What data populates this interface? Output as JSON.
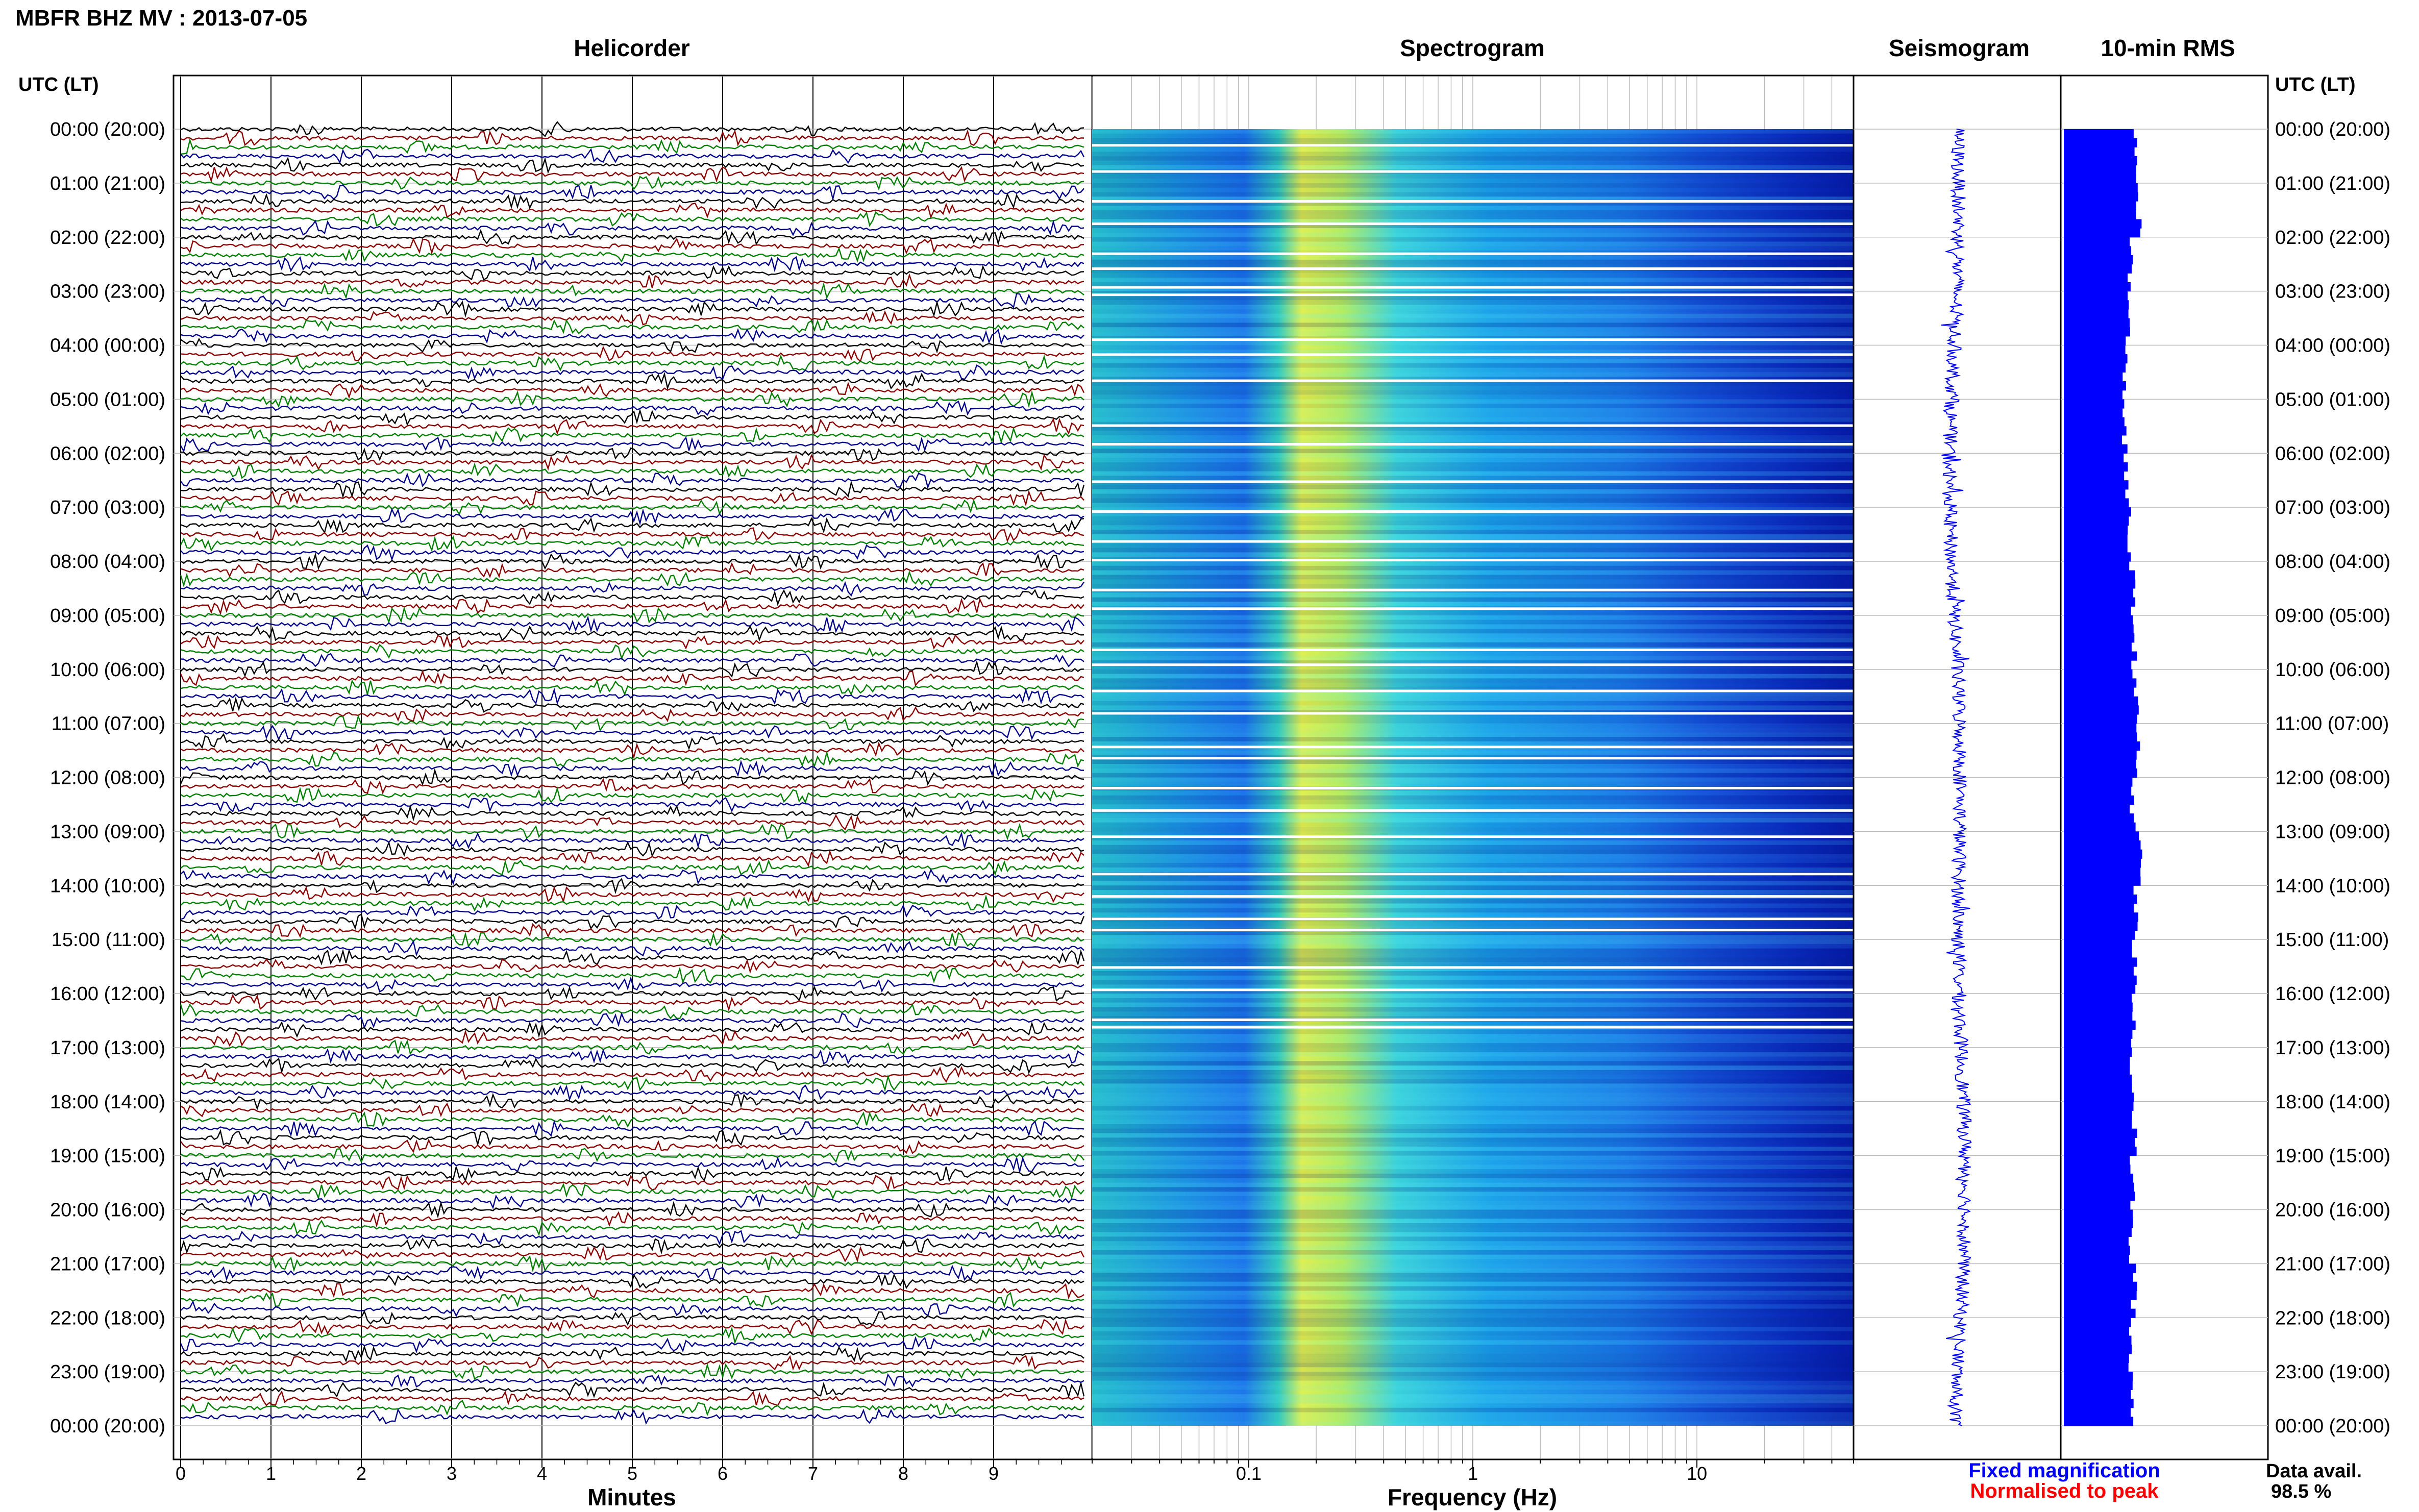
{
  "header": {
    "station_title": "MBFR BHZ MV : 2013-07-05",
    "time_axis_label_left": "UTC (LT)",
    "time_axis_label_right": "UTC (LT)"
  },
  "panels": {
    "helicorder_title": "Helicorder",
    "spectrogram_title": "Spectrogram",
    "seismogram_title": "Seismogram",
    "rms_title": "10-min RMS"
  },
  "footer": {
    "fixed_magnification": "Fixed magnification",
    "normalised_to_peak": "Normalised to peak",
    "data_avail_label": "Data avail.",
    "data_avail_value": "98.5 %"
  },
  "colors": {
    "helicorder_traces": [
      "#000000",
      "#8b0000",
      "#008000",
      "#00008b"
    ],
    "seismogram": "#0000ff",
    "rms_bars": "#0000ff",
    "fixed_magnification_text": "#0000ff",
    "normalised_to_peak_text": "#ff0000"
  },
  "chart_data": [
    {
      "type": "line",
      "panel": "helicorder",
      "title": "Helicorder",
      "xlabel": "Minutes",
      "x_ticks": [
        "0",
        "1",
        "2",
        "3",
        "4",
        "5",
        "6",
        "7",
        "8",
        "9"
      ],
      "xlim": [
        0,
        10
      ],
      "y_tick_labels": [
        "00:00 (20:00)",
        "01:00 (21:00)",
        "02:00 (22:00)",
        "03:00 (23:00)",
        "04:00 (00:00)",
        "05:00 (01:00)",
        "06:00 (02:00)",
        "07:00 (03:00)",
        "08:00 (04:00)",
        "09:00 (05:00)",
        "10:00 (06:00)",
        "11:00 (07:00)",
        "12:00 (08:00)",
        "13:00 (09:00)",
        "14:00 (10:00)",
        "15:00 (11:00)",
        "16:00 (12:00)",
        "17:00 (13:00)",
        "18:00 (14:00)",
        "19:00 (15:00)",
        "20:00 (16:00)",
        "21:00 (17:00)",
        "22:00 (18:00)",
        "23:00 (19:00)",
        "00:00 (20:00)"
      ],
      "traces_per_hour": 6,
      "trace_colors": [
        "#000000",
        "#8b0000",
        "#008000",
        "#00008b"
      ],
      "grid": true
    },
    {
      "type": "heatmap",
      "panel": "spectrogram",
      "title": "Spectrogram",
      "xlabel": "Frequency (Hz)",
      "x_scale": "log",
      "x_tick_labels": [
        "0.1",
        "1",
        "10"
      ],
      "x_ticks": [
        0.1,
        1,
        10
      ],
      "xlim": [
        0.02,
        50
      ],
      "colormap": "jet",
      "peak_band_hz": [
        0.2,
        0.5
      ]
    },
    {
      "type": "line",
      "panel": "seismogram",
      "title": "Seismogram",
      "color": "#0000ff"
    },
    {
      "type": "bar",
      "panel": "rms",
      "title": "10-min RMS",
      "orientation": "horizontal",
      "color": "#0000ff",
      "hourly_relative_rms": [
        0.88,
        0.92,
        0.82,
        0.78,
        0.75,
        0.74,
        0.76,
        0.8,
        0.84,
        0.86,
        0.88,
        0.9,
        0.84,
        0.94,
        0.88,
        0.86,
        0.86,
        0.84,
        0.86,
        0.84,
        0.82,
        0.86,
        0.82,
        0.84
      ]
    }
  ]
}
